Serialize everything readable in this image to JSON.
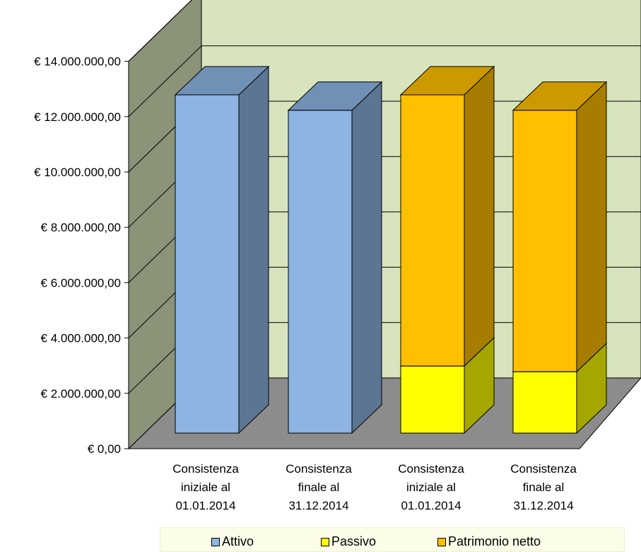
{
  "chart_data": {
    "type": "bar",
    "stacked": true,
    "three_d": true,
    "categories": [
      [
        "Consistenza",
        "iniziale al",
        "01.01.2014"
      ],
      [
        "Consistenza",
        "finale al",
        "31.12.2014"
      ],
      [
        "Consistenza",
        "iniziale al",
        "01.01.2014"
      ],
      [
        "Consistenza",
        "finale al",
        "31.12.2014"
      ]
    ],
    "series": [
      {
        "name": "Attivo",
        "color": "#8db4e2",
        "values": [
          12500000,
          11930000,
          0,
          0
        ]
      },
      {
        "name": "Passivo",
        "color": "#ffff00",
        "values": [
          0,
          0,
          2480000,
          2270000
        ]
      },
      {
        "name": "Patrimonio netto",
        "color": "#ffc000",
        "values": [
          0,
          0,
          10020000,
          9660000
        ]
      }
    ],
    "yticks": [
      "€ 0,00",
      "€ 2.000.000,00",
      "€ 4.000.000,00",
      "€ 6.000.000,00",
      "€ 8.000.000,00",
      "€ 10.000.000,00",
      "€ 12.000.000,00",
      "€ 14.000.000,00"
    ],
    "ylim": [
      0,
      14000000
    ],
    "grid": true,
    "legend_position": "bottom",
    "colors": {
      "back_wall": "#d7e4bd",
      "side_wall": "#8b9378",
      "floor": "#8c8c8c"
    }
  }
}
